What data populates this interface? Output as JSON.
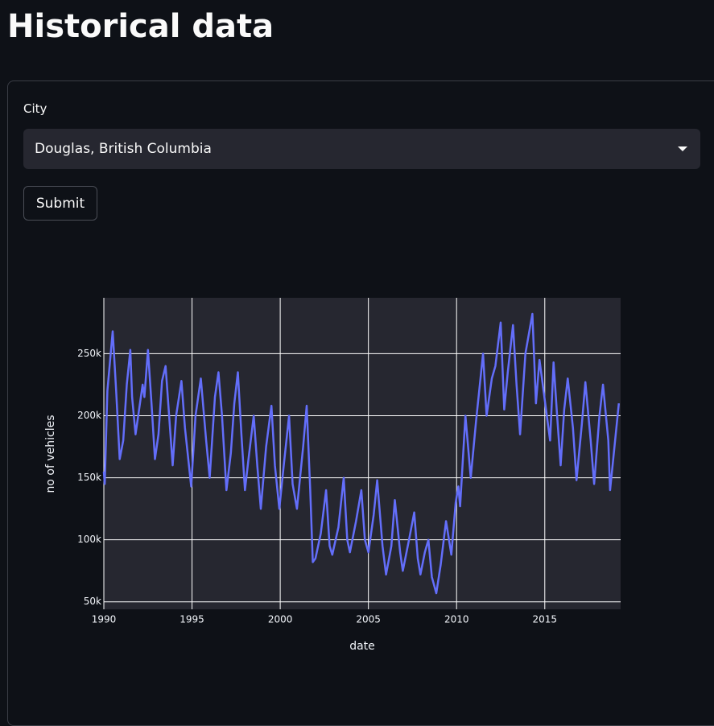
{
  "header": {
    "title": "Historical data"
  },
  "form": {
    "city_label": "City",
    "city_value": "Douglas, British Columbia",
    "submit": "Submit"
  },
  "chart_data": {
    "type": "line",
    "x_label": "date",
    "y_label": "no of vehicles",
    "x": [
      1990.0,
      1990.05,
      1990.2,
      1990.5,
      1990.7,
      1990.9,
      1991.1,
      1991.3,
      1991.5,
      1991.6,
      1991.8,
      1992.0,
      1992.2,
      1992.3,
      1992.5,
      1992.7,
      1992.9,
      1993.1,
      1993.3,
      1993.5,
      1993.7,
      1993.9,
      1994.1,
      1994.4,
      1994.6,
      1994.95,
      1995.2,
      1995.5,
      1995.8,
      1996.0,
      1996.3,
      1996.5,
      1996.7,
      1996.95,
      1997.2,
      1997.4,
      1997.6,
      1997.8,
      1998.0,
      1998.2,
      1998.5,
      1998.7,
      1998.9,
      1999.2,
      1999.5,
      1999.7,
      1999.95,
      2000.2,
      2000.5,
      2000.7,
      2000.95,
      2001.3,
      2001.5,
      2001.7,
      2001.85,
      2002.0,
      2002.3,
      2002.6,
      2002.8,
      2002.95,
      2003.3,
      2003.6,
      2003.8,
      2003.95,
      2004.3,
      2004.6,
      2004.8,
      2005.0,
      2005.3,
      2005.5,
      2005.8,
      2006.0,
      2006.3,
      2006.5,
      2006.8,
      2006.95,
      2007.3,
      2007.6,
      2007.8,
      2007.95,
      2008.2,
      2008.4,
      2008.6,
      2008.85,
      2009.1,
      2009.4,
      2009.7,
      2009.95,
      2010.1,
      2010.2,
      2010.5,
      2010.8,
      2011.1,
      2011.5,
      2011.7,
      2012.0,
      2012.2,
      2012.5,
      2012.7,
      2012.9,
      2013.2,
      2013.4,
      2013.6,
      2013.9,
      2014.3,
      2014.5,
      2014.7,
      2015.3,
      2015.5,
      2015.7,
      2015.9,
      2016.1,
      2016.3,
      2016.6,
      2016.8,
      2017.1,
      2017.3,
      2017.6,
      2017.8,
      2018.1,
      2018.3,
      2018.6,
      2018.7,
      2019.2
    ],
    "series": [
      {
        "name": "no of vehicles",
        "color": "#636efa",
        "values": [
          155000,
          145000,
          220000,
          268000,
          220000,
          165000,
          180000,
          225000,
          253000,
          215000,
          185000,
          205000,
          225000,
          215000,
          253000,
          210000,
          165000,
          185000,
          228000,
          240000,
          200000,
          160000,
          200000,
          228000,
          190000,
          143000,
          200000,
          230000,
          180000,
          150000,
          215000,
          235000,
          200000,
          140000,
          170000,
          210000,
          235000,
          185000,
          140000,
          165000,
          200000,
          160000,
          125000,
          175000,
          208000,
          160000,
          125000,
          160000,
          200000,
          145000,
          125000,
          175000,
          208000,
          140000,
          82000,
          85000,
          105000,
          140000,
          95000,
          88000,
          110000,
          150000,
          100000,
          90000,
          115000,
          140000,
          100000,
          90000,
          120000,
          148000,
          95000,
          72000,
          95000,
          132000,
          90000,
          75000,
          100000,
          122000,
          85000,
          72000,
          90000,
          100000,
          70000,
          57000,
          80000,
          115000,
          88000,
          130000,
          143000,
          127000,
          200000,
          150000,
          195000,
          250000,
          200000,
          230000,
          240000,
          275000,
          205000,
          235000,
          273000,
          225000,
          185000,
          250000,
          282000,
          210000,
          245000,
          180000,
          243000,
          200000,
          160000,
          205000,
          230000,
          190000,
          148000,
          193000,
          227000,
          180000,
          145000,
          200000,
          225000,
          180000,
          140000,
          210000
        ]
      }
    ],
    "xlim": [
      1990,
      2019.3
    ],
    "xticks": [
      1990,
      1995,
      2000,
      2005,
      2010,
      2015
    ],
    "ylim": [
      44000,
      295000
    ],
    "yticks": [
      {
        "value": 50000,
        "label": "50k"
      },
      {
        "value": 100000,
        "label": "100k"
      },
      {
        "value": 150000,
        "label": "150k"
      },
      {
        "value": 200000,
        "label": "200k"
      },
      {
        "value": 250000,
        "label": "250k"
      }
    ],
    "grid": true
  }
}
